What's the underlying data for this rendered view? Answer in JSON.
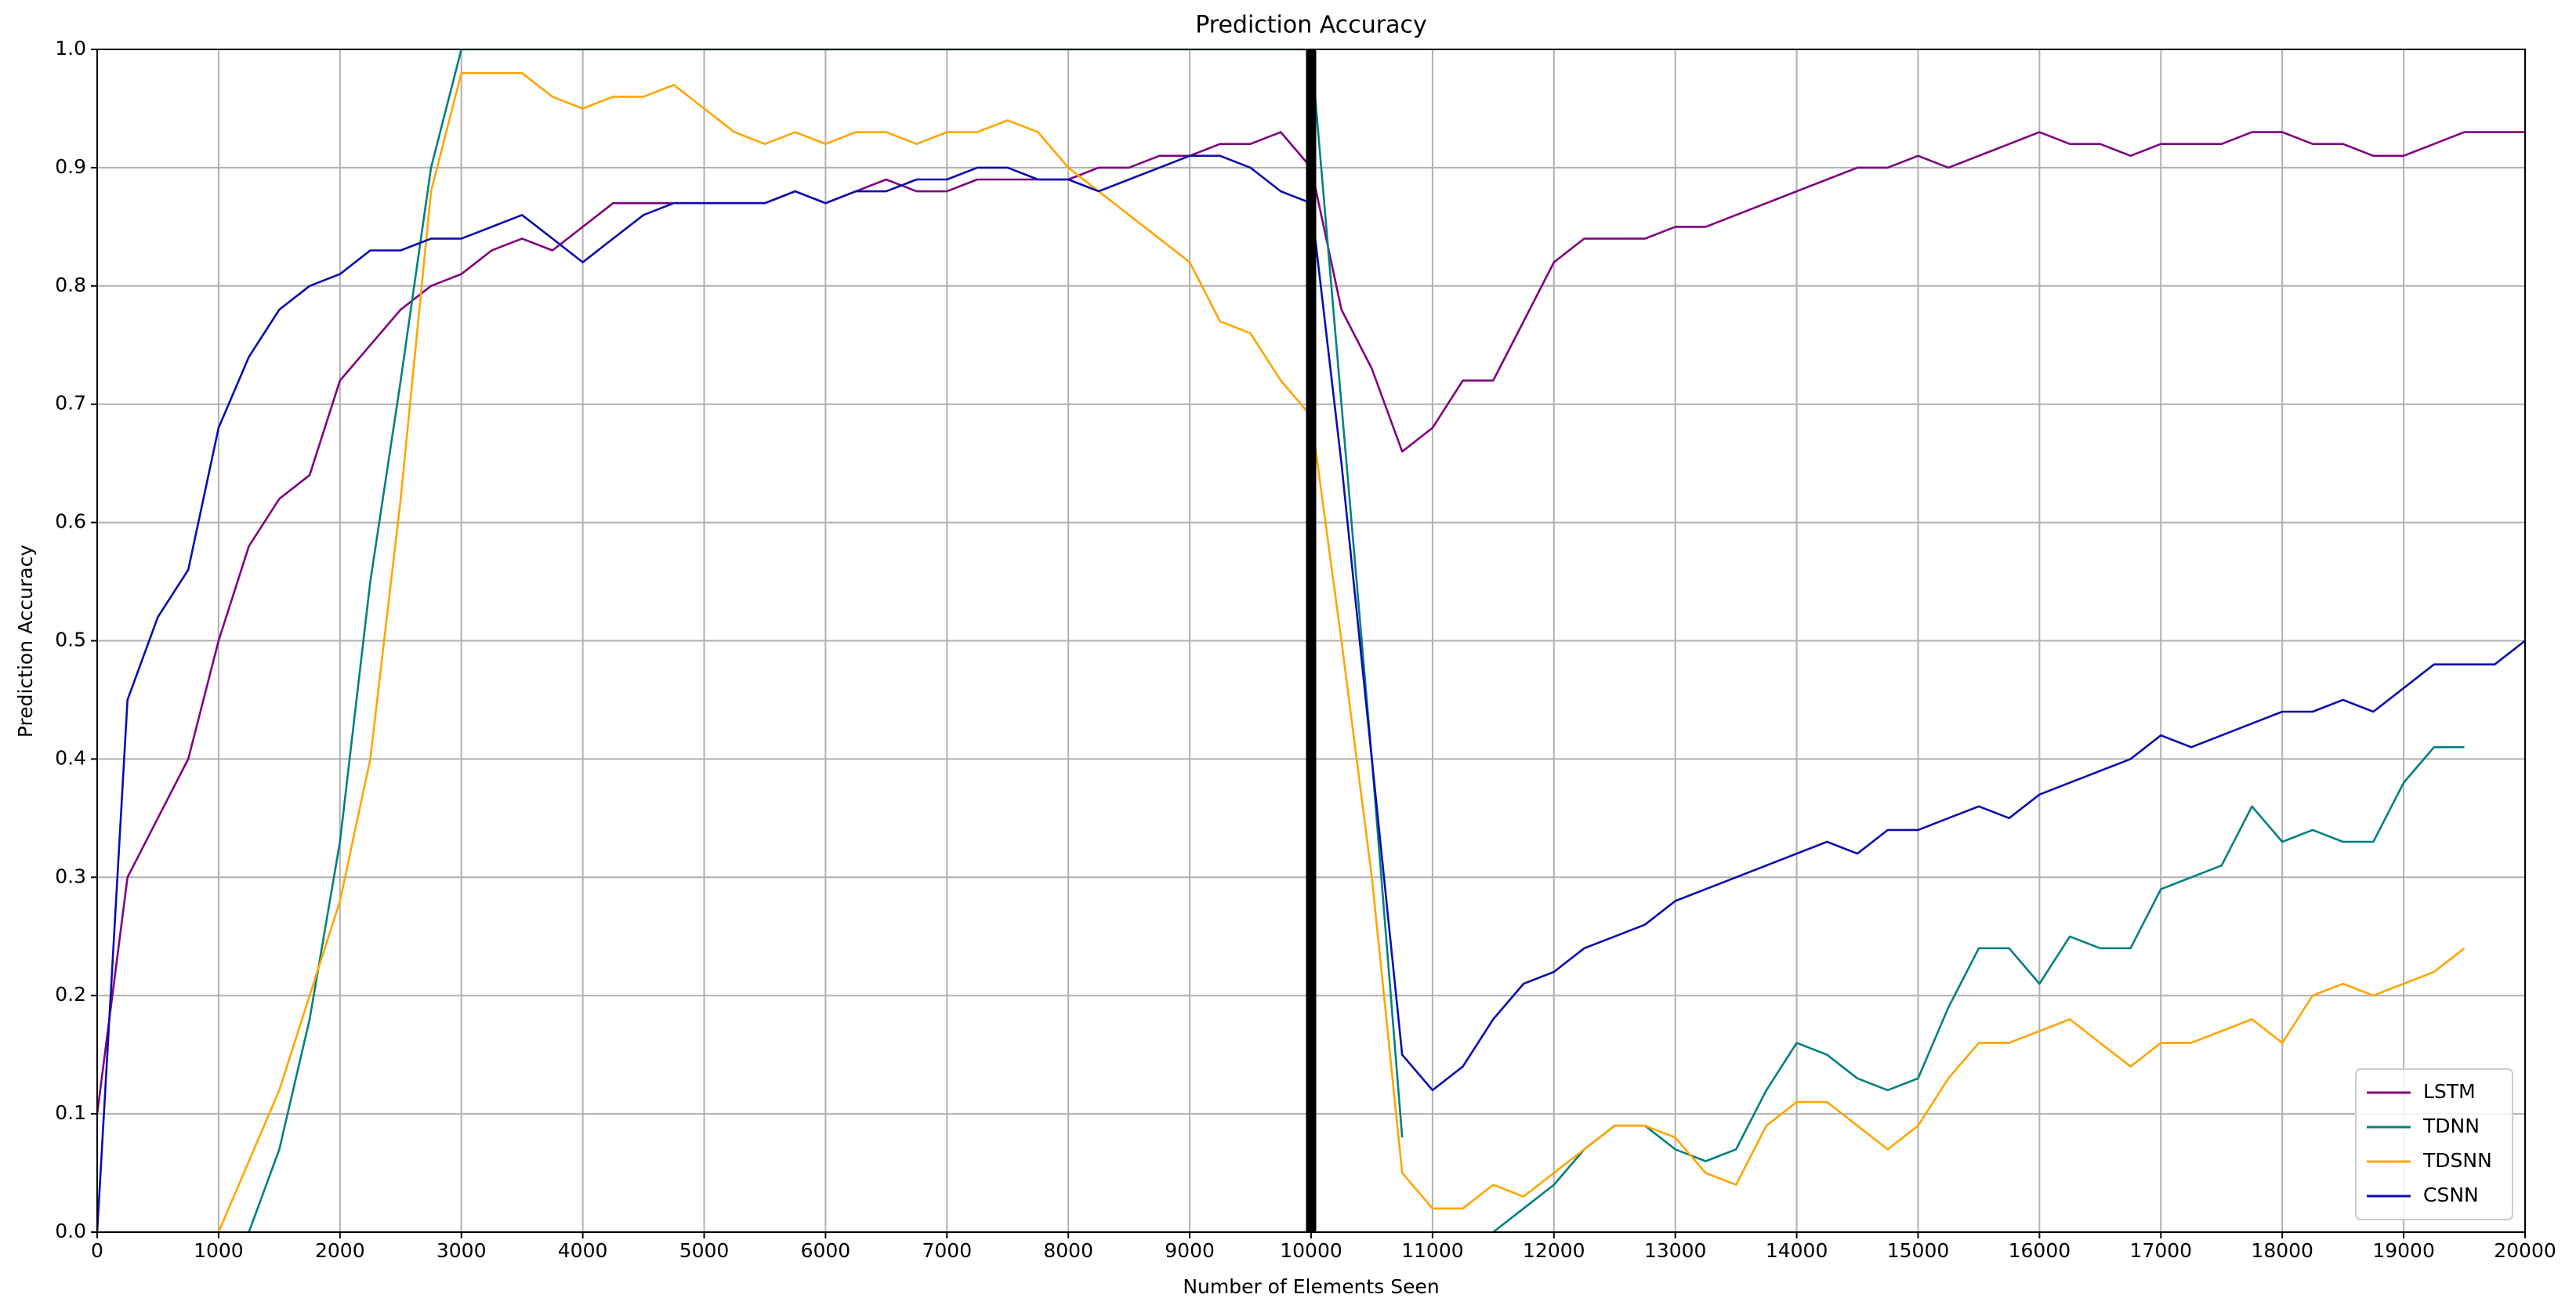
{
  "chart_data": {
    "type": "line",
    "title": "Prediction Accuracy",
    "x_label": "Number of Elements Seen",
    "y_label": "Prediction Accuracy",
    "x": [
      0,
      250,
      500,
      750,
      1000,
      1250,
      1500,
      1750,
      2000,
      2250,
      2500,
      2750,
      3000,
      3250,
      3500,
      3750,
      4000,
      4250,
      4500,
      4750,
      5000,
      5250,
      5500,
      5750,
      6000,
      6250,
      6500,
      6750,
      7000,
      7250,
      7500,
      7750,
      8000,
      8250,
      8500,
      8750,
      9000,
      9250,
      9500,
      9750,
      10000,
      10250,
      10500,
      10750,
      11000,
      11250,
      11500,
      11750,
      12000,
      12250,
      12500,
      12750,
      13000,
      13250,
      13500,
      13750,
      14000,
      14250,
      14500,
      14750,
      15000,
      15250,
      15500,
      15750,
      16000,
      16250,
      16500,
      16750,
      17000,
      17250,
      17500,
      17750,
      18000,
      18250,
      18500,
      18750,
      19000,
      19250,
      19500,
      19750,
      20000
    ],
    "series": [
      {
        "name": "LSTM",
        "color": "#800080",
        "values": [
          0.1,
          0.3,
          0.35,
          0.4,
          0.5,
          0.58,
          0.62,
          0.64,
          0.72,
          0.75,
          0.78,
          0.8,
          0.81,
          0.83,
          0.84,
          0.83,
          0.85,
          0.87,
          0.87,
          0.87,
          0.87,
          0.87,
          0.87,
          0.88,
          0.87,
          0.88,
          0.89,
          0.88,
          0.88,
          0.89,
          0.89,
          0.89,
          0.89,
          0.9,
          0.9,
          0.91,
          0.91,
          0.92,
          0.92,
          0.93,
          0.9,
          0.78,
          0.73,
          0.66,
          0.68,
          0.72,
          0.72,
          0.77,
          0.82,
          0.84,
          0.84,
          0.84,
          0.85,
          0.85,
          0.86,
          0.87,
          0.88,
          0.89,
          0.9,
          0.9,
          0.91,
          0.9,
          0.91,
          0.92,
          0.93,
          0.92,
          0.92,
          0.91,
          0.92,
          0.92,
          0.92,
          0.93,
          0.93,
          0.92,
          0.92,
          0.91,
          0.91,
          0.92,
          0.93,
          0.93,
          0.93
        ]
      },
      {
        "name": "TDNN",
        "color": "#008080",
        "values": [
          null,
          null,
          null,
          null,
          null,
          0.0,
          0.07,
          0.18,
          0.33,
          0.55,
          0.72,
          0.9,
          1,
          1,
          1,
          1,
          1,
          1,
          1,
          1,
          1,
          1,
          1,
          1,
          1,
          1,
          1,
          1,
          1,
          1,
          1,
          1,
          1,
          1,
          1,
          1,
          1,
          1,
          1,
          1,
          1,
          0.7,
          0.4,
          0.08,
          null,
          null,
          0.0,
          0.02,
          0.04,
          0.07,
          0.09,
          0.09,
          0.07,
          0.06,
          0.07,
          0.12,
          0.16,
          0.15,
          0.13,
          0.12,
          0.13,
          0.19,
          0.24,
          0.24,
          0.21,
          0.25,
          0.24,
          0.24,
          0.29,
          0.3,
          0.31,
          0.36,
          0.33,
          0.34,
          0.33,
          0.33,
          0.38,
          0.41,
          0.41,
          null,
          null
        ]
      },
      {
        "name": "TDSNN",
        "color": "#ffa500",
        "values": [
          null,
          null,
          null,
          null,
          0.0,
          0.06,
          0.12,
          0.2,
          0.28,
          0.4,
          0.62,
          0.88,
          0.98,
          0.98,
          0.98,
          0.96,
          0.95,
          0.96,
          0.96,
          0.97,
          0.95,
          0.93,
          0.92,
          0.93,
          0.92,
          0.93,
          0.93,
          0.92,
          0.93,
          0.93,
          0.94,
          0.93,
          0.9,
          0.88,
          0.86,
          0.84,
          0.82,
          0.77,
          0.76,
          0.72,
          0.69,
          0.5,
          0.3,
          0.05,
          0.02,
          0.02,
          0.04,
          0.03,
          0.05,
          0.07,
          0.09,
          0.09,
          0.08,
          0.05,
          0.04,
          0.09,
          0.11,
          0.11,
          0.09,
          0.07,
          0.09,
          0.13,
          0.16,
          0.16,
          0.17,
          0.18,
          0.16,
          0.14,
          0.16,
          0.16,
          0.17,
          0.18,
          0.16,
          0.2,
          0.21,
          0.2,
          0.21,
          0.22,
          0.24,
          null,
          null
        ]
      },
      {
        "name": "CSNN",
        "color": "#0c0cb0",
        "values": [
          0.0,
          0.45,
          0.52,
          0.56,
          0.68,
          0.74,
          0.78,
          0.8,
          0.81,
          0.83,
          0.83,
          0.84,
          0.84,
          0.85,
          0.86,
          0.84,
          0.82,
          0.84,
          0.86,
          0.87,
          0.87,
          0.87,
          0.87,
          0.88,
          0.87,
          0.88,
          0.88,
          0.89,
          0.89,
          0.9,
          0.9,
          0.89,
          0.89,
          0.88,
          0.89,
          0.9,
          0.91,
          0.91,
          0.9,
          0.88,
          0.87,
          0.65,
          0.4,
          0.15,
          0.12,
          0.14,
          0.18,
          0.21,
          0.22,
          0.24,
          0.25,
          0.26,
          0.28,
          0.29,
          0.3,
          0.31,
          0.32,
          0.33,
          0.32,
          0.34,
          0.34,
          0.35,
          0.36,
          0.35,
          0.37,
          0.38,
          0.39,
          0.4,
          0.42,
          0.41,
          0.42,
          0.43,
          0.44,
          0.44,
          0.45,
          0.44,
          0.46,
          0.48,
          0.48,
          0.48,
          0.5
        ]
      }
    ],
    "vlines": [
      10000
    ],
    "vline_color": "#000000",
    "xlim": [
      0,
      20000
    ],
    "xticks": [
      0,
      1000,
      2000,
      3000,
      4000,
      5000,
      6000,
      7000,
      8000,
      9000,
      10000,
      11000,
      12000,
      13000,
      14000,
      15000,
      16000,
      17000,
      18000,
      19000,
      20000
    ],
    "ylim": [
      0,
      1
    ],
    "yticks": [
      {
        "value": 0,
        "label": "0.0"
      },
      0.1,
      0.2,
      0.3,
      0.4,
      0.5,
      0.6,
      0.7,
      0.8,
      0.9,
      {
        "value": 1,
        "label": "1.0"
      }
    ],
    "grid": true,
    "legend": "lower right"
  }
}
